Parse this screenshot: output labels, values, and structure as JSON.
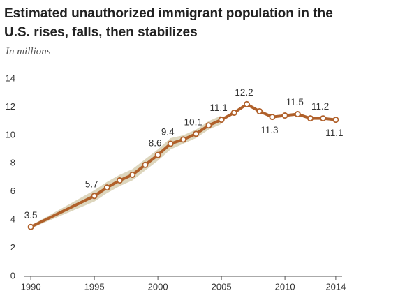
{
  "chart_data": {
    "type": "line",
    "title": "Estimated unauthorized immigrant population in the U.S. rises, falls, then stabilizes",
    "subtitle": "In millions",
    "x": [
      1990,
      1995,
      1996,
      1997,
      1998,
      1999,
      2000,
      2001,
      2002,
      2003,
      2004,
      2005,
      2006,
      2007,
      2008,
      2009,
      2010,
      2011,
      2012,
      2013,
      2014
    ],
    "series": [
      {
        "name": "Unauthorized immigrant population",
        "color": "#b0602a",
        "values": [
          3.5,
          5.7,
          6.3,
          6.8,
          7.2,
          7.9,
          8.6,
          9.4,
          9.7,
          10.1,
          10.7,
          11.1,
          11.6,
          12.2,
          11.7,
          11.3,
          11.4,
          11.5,
          11.2,
          11.2,
          11.1
        ],
        "value_labels": [
          "3.5",
          "5.7",
          null,
          null,
          null,
          null,
          "8.6",
          "9.4",
          null,
          "10.1",
          null,
          "11.1",
          null,
          "12.2",
          null,
          "11.3",
          null,
          "11.5",
          null,
          "11.2",
          "11.1"
        ]
      }
    ],
    "band": {
      "color": "#ddd6bd",
      "lower": [
        3.4,
        5.3,
        5.9,
        6.4,
        6.8,
        7.5,
        8.2,
        9.0,
        9.4,
        9.8,
        10.4,
        10.8,
        null,
        null,
        null,
        null,
        null,
        null,
        null,
        null,
        null
      ],
      "upper": [
        3.6,
        6.1,
        6.7,
        7.2,
        7.6,
        8.3,
        9.0,
        9.8,
        10.0,
        10.4,
        11.0,
        11.4,
        null,
        null,
        null,
        null,
        null,
        null,
        null,
        null,
        null
      ]
    },
    "xlim": [
      1989.5,
      2014.5
    ],
    "xticks": [
      1990,
      1995,
      2000,
      2005,
      2010,
      2014
    ],
    "ylim": [
      0,
      14
    ],
    "yticks": [
      0,
      2,
      4,
      6,
      8,
      10,
      12,
      14
    ],
    "grid": false
  }
}
